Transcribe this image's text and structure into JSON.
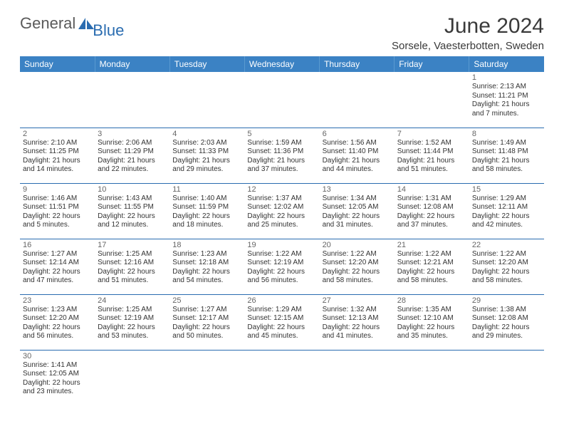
{
  "logo": {
    "text_general": "General",
    "text_blue": "Blue"
  },
  "header": {
    "month_title": "June 2024",
    "location": "Sorsele, Vaesterbotten, Sweden"
  },
  "colors": {
    "header_bg": "#3b82c4",
    "header_text": "#ffffff",
    "cell_border": "#2a6cb0",
    "text": "#333333",
    "daynum": "#666666"
  },
  "day_labels": [
    "Sunday",
    "Monday",
    "Tuesday",
    "Wednesday",
    "Thursday",
    "Friday",
    "Saturday"
  ],
  "weeks": [
    [
      null,
      null,
      null,
      null,
      null,
      null,
      {
        "n": "1",
        "sr": "Sunrise: 2:13 AM",
        "ss": "Sunset: 11:21 PM",
        "dl1": "Daylight: 21 hours",
        "dl2": "and 7 minutes."
      }
    ],
    [
      {
        "n": "2",
        "sr": "Sunrise: 2:10 AM",
        "ss": "Sunset: 11:25 PM",
        "dl1": "Daylight: 21 hours",
        "dl2": "and 14 minutes."
      },
      {
        "n": "3",
        "sr": "Sunrise: 2:06 AM",
        "ss": "Sunset: 11:29 PM",
        "dl1": "Daylight: 21 hours",
        "dl2": "and 22 minutes."
      },
      {
        "n": "4",
        "sr": "Sunrise: 2:03 AM",
        "ss": "Sunset: 11:33 PM",
        "dl1": "Daylight: 21 hours",
        "dl2": "and 29 minutes."
      },
      {
        "n": "5",
        "sr": "Sunrise: 1:59 AM",
        "ss": "Sunset: 11:36 PM",
        "dl1": "Daylight: 21 hours",
        "dl2": "and 37 minutes."
      },
      {
        "n": "6",
        "sr": "Sunrise: 1:56 AM",
        "ss": "Sunset: 11:40 PM",
        "dl1": "Daylight: 21 hours",
        "dl2": "and 44 minutes."
      },
      {
        "n": "7",
        "sr": "Sunrise: 1:52 AM",
        "ss": "Sunset: 11:44 PM",
        "dl1": "Daylight: 21 hours",
        "dl2": "and 51 minutes."
      },
      {
        "n": "8",
        "sr": "Sunrise: 1:49 AM",
        "ss": "Sunset: 11:48 PM",
        "dl1": "Daylight: 21 hours",
        "dl2": "and 58 minutes."
      }
    ],
    [
      {
        "n": "9",
        "sr": "Sunrise: 1:46 AM",
        "ss": "Sunset: 11:51 PM",
        "dl1": "Daylight: 22 hours",
        "dl2": "and 5 minutes."
      },
      {
        "n": "10",
        "sr": "Sunrise: 1:43 AM",
        "ss": "Sunset: 11:55 PM",
        "dl1": "Daylight: 22 hours",
        "dl2": "and 12 minutes."
      },
      {
        "n": "11",
        "sr": "Sunrise: 1:40 AM",
        "ss": "Sunset: 11:59 PM",
        "dl1": "Daylight: 22 hours",
        "dl2": "and 18 minutes."
      },
      {
        "n": "12",
        "sr": "Sunrise: 1:37 AM",
        "ss": "Sunset: 12:02 AM",
        "dl1": "Daylight: 22 hours",
        "dl2": "and 25 minutes."
      },
      {
        "n": "13",
        "sr": "Sunrise: 1:34 AM",
        "ss": "Sunset: 12:05 AM",
        "dl1": "Daylight: 22 hours",
        "dl2": "and 31 minutes."
      },
      {
        "n": "14",
        "sr": "Sunrise: 1:31 AM",
        "ss": "Sunset: 12:08 AM",
        "dl1": "Daylight: 22 hours",
        "dl2": "and 37 minutes."
      },
      {
        "n": "15",
        "sr": "Sunrise: 1:29 AM",
        "ss": "Sunset: 12:11 AM",
        "dl1": "Daylight: 22 hours",
        "dl2": "and 42 minutes."
      }
    ],
    [
      {
        "n": "16",
        "sr": "Sunrise: 1:27 AM",
        "ss": "Sunset: 12:14 AM",
        "dl1": "Daylight: 22 hours",
        "dl2": "and 47 minutes."
      },
      {
        "n": "17",
        "sr": "Sunrise: 1:25 AM",
        "ss": "Sunset: 12:16 AM",
        "dl1": "Daylight: 22 hours",
        "dl2": "and 51 minutes."
      },
      {
        "n": "18",
        "sr": "Sunrise: 1:23 AM",
        "ss": "Sunset: 12:18 AM",
        "dl1": "Daylight: 22 hours",
        "dl2": "and 54 minutes."
      },
      {
        "n": "19",
        "sr": "Sunrise: 1:22 AM",
        "ss": "Sunset: 12:19 AM",
        "dl1": "Daylight: 22 hours",
        "dl2": "and 56 minutes."
      },
      {
        "n": "20",
        "sr": "Sunrise: 1:22 AM",
        "ss": "Sunset: 12:20 AM",
        "dl1": "Daylight: 22 hours",
        "dl2": "and 58 minutes."
      },
      {
        "n": "21",
        "sr": "Sunrise: 1:22 AM",
        "ss": "Sunset: 12:21 AM",
        "dl1": "Daylight: 22 hours",
        "dl2": "and 58 minutes."
      },
      {
        "n": "22",
        "sr": "Sunrise: 1:22 AM",
        "ss": "Sunset: 12:20 AM",
        "dl1": "Daylight: 22 hours",
        "dl2": "and 58 minutes."
      }
    ],
    [
      {
        "n": "23",
        "sr": "Sunrise: 1:23 AM",
        "ss": "Sunset: 12:20 AM",
        "dl1": "Daylight: 22 hours",
        "dl2": "and 56 minutes."
      },
      {
        "n": "24",
        "sr": "Sunrise: 1:25 AM",
        "ss": "Sunset: 12:19 AM",
        "dl1": "Daylight: 22 hours",
        "dl2": "and 53 minutes."
      },
      {
        "n": "25",
        "sr": "Sunrise: 1:27 AM",
        "ss": "Sunset: 12:17 AM",
        "dl1": "Daylight: 22 hours",
        "dl2": "and 50 minutes."
      },
      {
        "n": "26",
        "sr": "Sunrise: 1:29 AM",
        "ss": "Sunset: 12:15 AM",
        "dl1": "Daylight: 22 hours",
        "dl2": "and 45 minutes."
      },
      {
        "n": "27",
        "sr": "Sunrise: 1:32 AM",
        "ss": "Sunset: 12:13 AM",
        "dl1": "Daylight: 22 hours",
        "dl2": "and 41 minutes."
      },
      {
        "n": "28",
        "sr": "Sunrise: 1:35 AM",
        "ss": "Sunset: 12:10 AM",
        "dl1": "Daylight: 22 hours",
        "dl2": "and 35 minutes."
      },
      {
        "n": "29",
        "sr": "Sunrise: 1:38 AM",
        "ss": "Sunset: 12:08 AM",
        "dl1": "Daylight: 22 hours",
        "dl2": "and 29 minutes."
      }
    ],
    [
      {
        "n": "30",
        "sr": "Sunrise: 1:41 AM",
        "ss": "Sunset: 12:05 AM",
        "dl1": "Daylight: 22 hours",
        "dl2": "and 23 minutes."
      },
      null,
      null,
      null,
      null,
      null,
      null
    ]
  ]
}
